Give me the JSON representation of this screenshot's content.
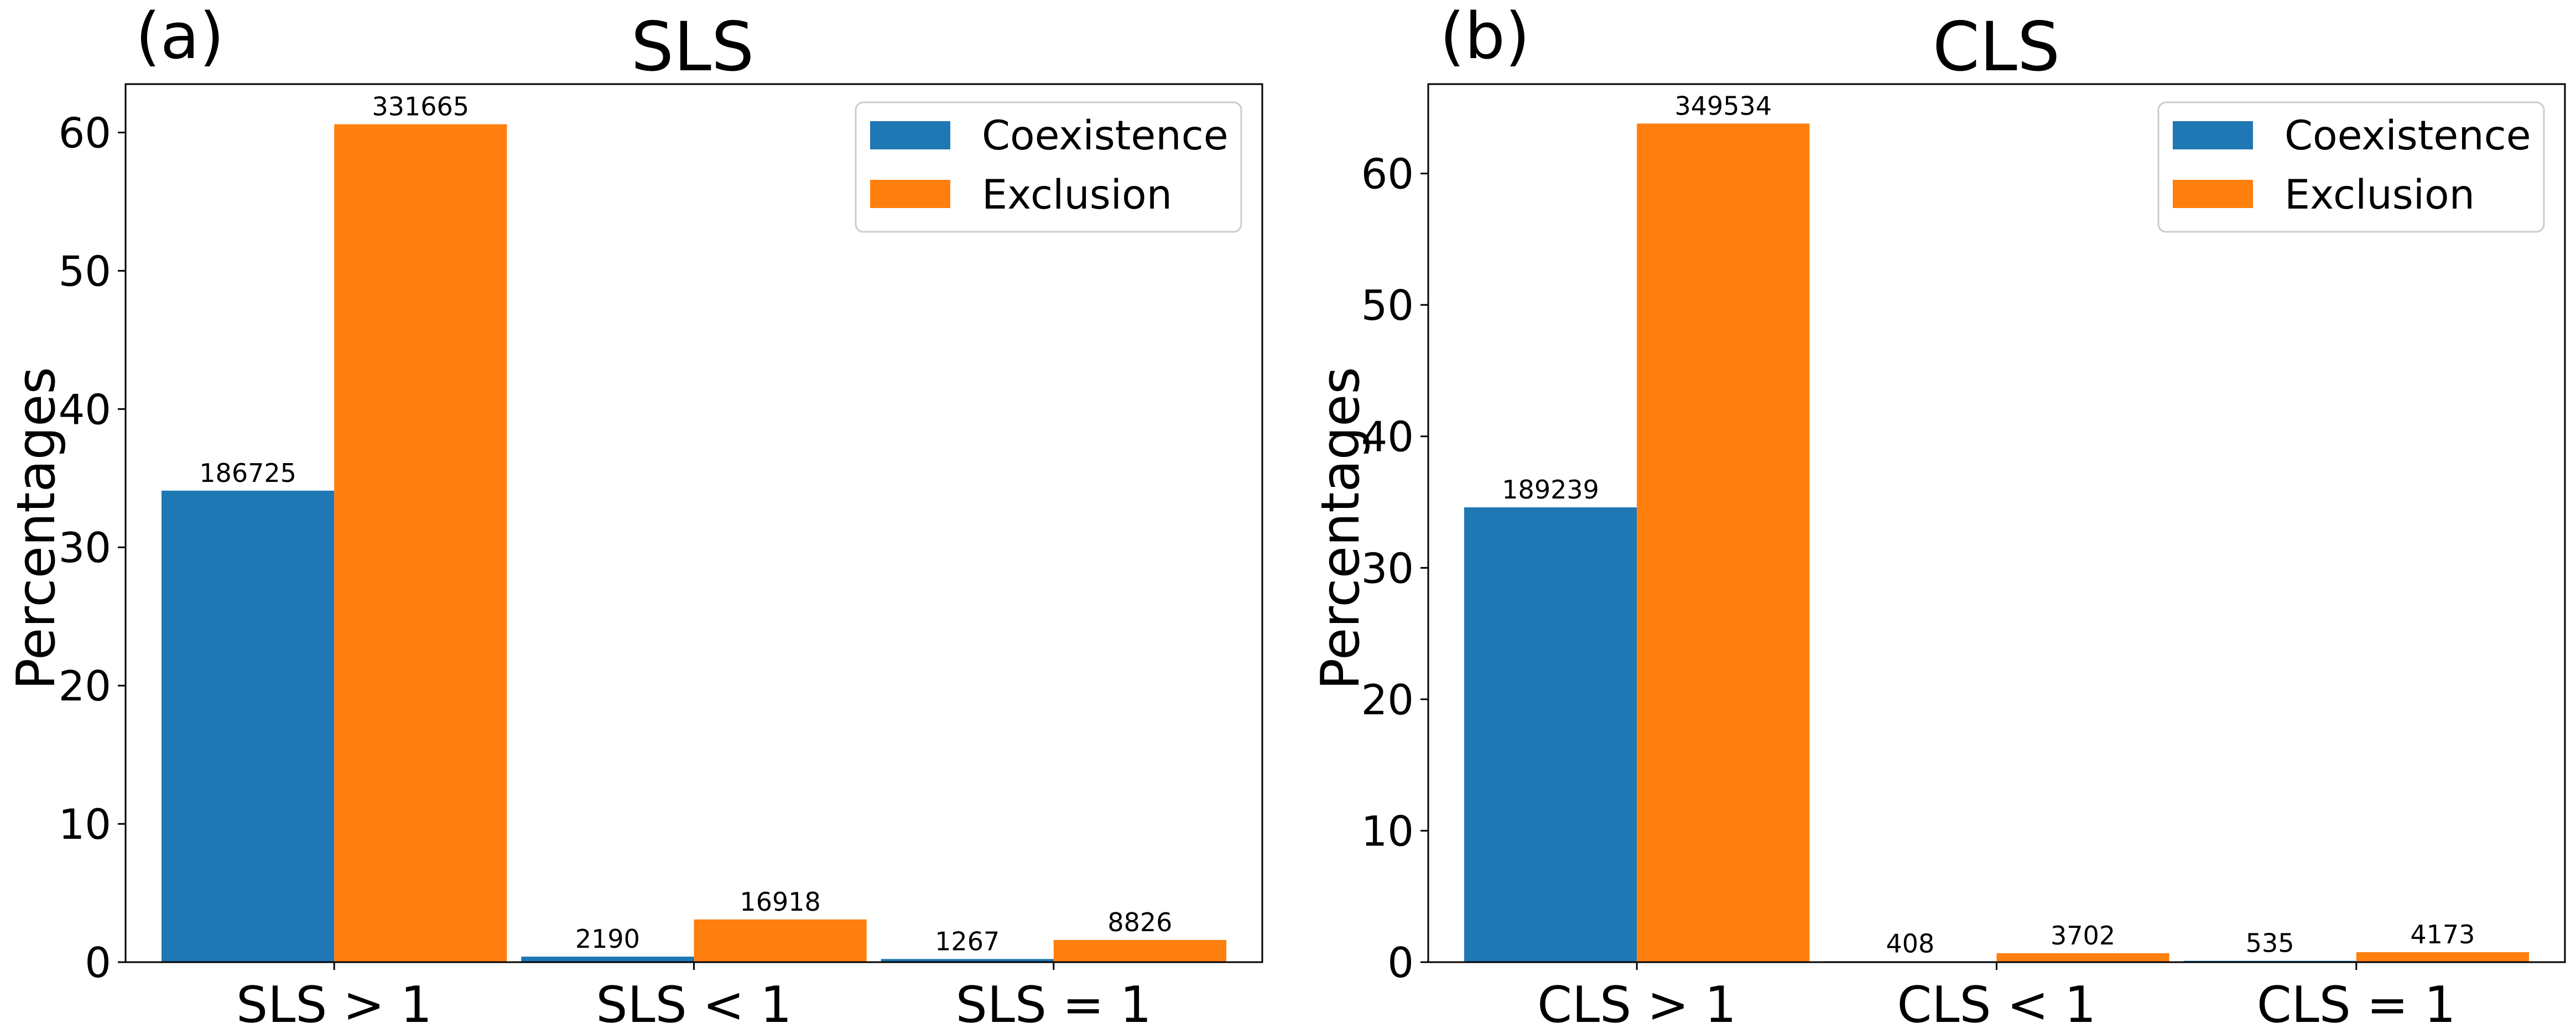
{
  "colors": {
    "coexistence": "#1f77b4",
    "exclusion": "#ff7f0e"
  },
  "chart_data": [
    {
      "type": "bar",
      "panel_label": "(a)",
      "title": "SLS",
      "xlabel": "",
      "ylabel": "Percentages",
      "ylim": [
        0,
        63.5
      ],
      "yticks": [
        "0",
        "10",
        "20",
        "30",
        "40",
        "50",
        "60"
      ],
      "categories": [
        "SLS > 1",
        "SLS < 1",
        "SLS = 1"
      ],
      "legend_position": "top-right",
      "grid": false,
      "series": [
        {
          "name": "Coexistence",
          "values": [
            34.1,
            0.4,
            0.23
          ],
          "labels": [
            "186725",
            "2190",
            "1267"
          ]
        },
        {
          "name": "Exclusion",
          "values": [
            60.6,
            3.09,
            1.61
          ],
          "labels": [
            "331665",
            "16918",
            "8826"
          ]
        }
      ]
    },
    {
      "type": "bar",
      "panel_label": "(b)",
      "title": "CLS",
      "xlabel": "",
      "ylabel": "Percentages",
      "ylim": [
        0,
        66.8
      ],
      "yticks": [
        "0",
        "10",
        "20",
        "30",
        "40",
        "50",
        "60"
      ],
      "categories": [
        "CLS > 1",
        "CLS < 1",
        "CLS = 1"
      ],
      "legend_position": "top-right",
      "grid": false,
      "series": [
        {
          "name": "Coexistence",
          "values": [
            34.6,
            0.07,
            0.1
          ],
          "labels": [
            "189239",
            "408",
            "535"
          ]
        },
        {
          "name": "Exclusion",
          "values": [
            63.8,
            0.68,
            0.76
          ],
          "labels": [
            "349534",
            "3702",
            "4173"
          ]
        }
      ]
    }
  ]
}
